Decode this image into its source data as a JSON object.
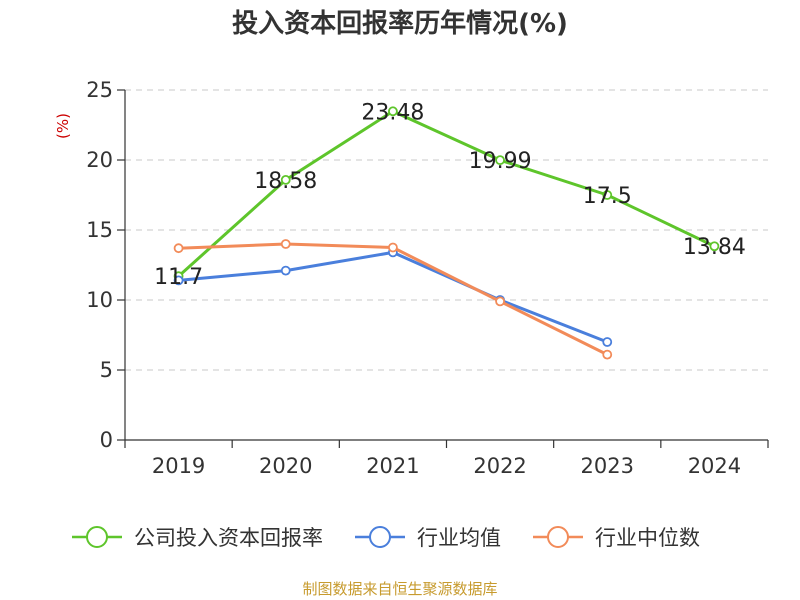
{
  "chart_data": {
    "type": "line",
    "title": "投入资本回报率历年情况(%)",
    "ylabel": "(%)",
    "xlabel": "",
    "categories": [
      "2019",
      "2020",
      "2021",
      "2022",
      "2023",
      "2024"
    ],
    "ylim": [
      0,
      25
    ],
    "yticks": [
      0,
      5,
      10,
      15,
      20,
      25
    ],
    "grid": true,
    "legend_position": "bottom",
    "series": [
      {
        "name": "公司投入资本回报率",
        "color": "#5ec52b",
        "values": [
          11.7,
          18.58,
          23.48,
          19.99,
          17.5,
          13.84
        ],
        "labels": [
          "11.7",
          "18.58",
          "23.48",
          "19.99",
          "17.5",
          "13.84"
        ],
        "show_labels": true
      },
      {
        "name": "行业均值",
        "color": "#4a7fdc",
        "values": [
          11.4,
          12.1,
          13.4,
          10.0,
          7.0,
          null
        ],
        "show_labels": false
      },
      {
        "name": "行业中位数",
        "color": "#f28b59",
        "values": [
          13.7,
          14.0,
          13.75,
          9.9,
          6.1,
          null
        ],
        "show_labels": false
      }
    ],
    "unit_color": "#cc0000",
    "source": "制图数据来自恒生聚源数据库",
    "source_color": "#c79b2e"
  }
}
